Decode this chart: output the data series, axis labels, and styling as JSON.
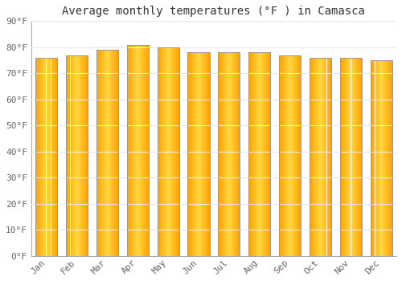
{
  "months": [
    "Jan",
    "Feb",
    "Mar",
    "Apr",
    "May",
    "Jun",
    "Jul",
    "Aug",
    "Sep",
    "Oct",
    "Nov",
    "Dec"
  ],
  "values": [
    76,
    77,
    79,
    81,
    80,
    78,
    78,
    78,
    77,
    76,
    76,
    75
  ],
  "bar_color_center": "#FFD740",
  "bar_color_edge": "#FFA000",
  "bar_border_color": "#999999",
  "background_color": "#FFFFFF",
  "plot_bg_color": "#FFFFFF",
  "title": "Average monthly temperatures (°F ) in Camasca",
  "ylim": [
    0,
    90
  ],
  "yticks": [
    0,
    10,
    20,
    30,
    40,
    50,
    60,
    70,
    80,
    90
  ],
  "ytick_labels": [
    "0°F",
    "10°F",
    "20°F",
    "30°F",
    "40°F",
    "50°F",
    "60°F",
    "70°F",
    "80°F",
    "90°F"
  ],
  "grid_color": "#E8E8E8",
  "title_fontsize": 10,
  "tick_fontsize": 8,
  "figsize": [
    5.0,
    3.5
  ],
  "dpi": 100
}
